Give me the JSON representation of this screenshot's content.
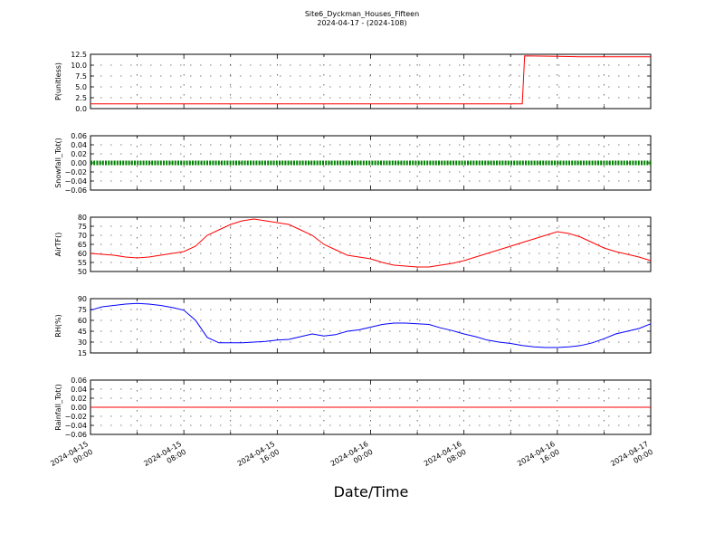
{
  "title": "Site6_Dyckman_Houses_Fifteen",
  "subtitle": "2024-04-17 - (2024-108)",
  "xlabel": "Date/Time",
  "x_ticks": [
    "2024-04-15\n00:00",
    "2024-04-15\n08:00",
    "2024-04-15\n16:00",
    "2024-04-16\n00:00",
    "2024-04-16\n08:00",
    "2024-04-16\n16:00",
    "2024-04-17\n00:00"
  ],
  "chart_data": [
    {
      "type": "line",
      "ylabel": "P(unitless)",
      "ylim": [
        0,
        13.5
      ],
      "yticks": [
        "0.0",
        "2.5",
        "5.0",
        "7.5",
        "10.0",
        "12.5"
      ],
      "grid": true,
      "series": [
        {
          "color": "#ff0000",
          "marker": "none",
          "points": [
            [
              0,
              1.2
            ],
            [
              37,
              1.2
            ],
            [
              37.2,
              13.1
            ],
            [
              40,
              13.0
            ],
            [
              42,
              12.9
            ],
            [
              48,
              12.9
            ]
          ]
        }
      ]
    },
    {
      "type": "line",
      "ylabel": "Snowfall_Tot()",
      "ylim": [
        -0.06,
        0.06
      ],
      "yticks": [
        "−0.06",
        "−0.04",
        "−0.02",
        "0.00",
        "0.02",
        "0.04",
        "0.06"
      ],
      "grid": true,
      "series": [
        {
          "color": "#008000",
          "marker": "dot",
          "points": [
            [
              0,
              0
            ],
            [
              48,
              0
            ]
          ]
        }
      ]
    },
    {
      "type": "line",
      "ylabel": "AirTF()",
      "ylim": [
        50,
        80
      ],
      "yticks": [
        "50",
        "55",
        "60",
        "65",
        "70",
        "75",
        "80"
      ],
      "grid": true,
      "series": [
        {
          "color": "#ff0000",
          "marker": "none",
          "points": [
            [
              0,
              60
            ],
            [
              1,
              59.5
            ],
            [
              2,
              59
            ],
            [
              3,
              58
            ],
            [
              4,
              57.5
            ],
            [
              5,
              58
            ],
            [
              6,
              59
            ],
            [
              7,
              60
            ],
            [
              8,
              61
            ],
            [
              9,
              64
            ],
            [
              10,
              70
            ],
            [
              11,
              73
            ],
            [
              12,
              76
            ],
            [
              13,
              78
            ],
            [
              14,
              79
            ],
            [
              15,
              78
            ],
            [
              16,
              77
            ],
            [
              17,
              76
            ],
            [
              18,
              73
            ],
            [
              19,
              70
            ],
            [
              20,
              65
            ],
            [
              21,
              62
            ],
            [
              22,
              59
            ],
            [
              23,
              58
            ],
            [
              24,
              57
            ],
            [
              25,
              55
            ],
            [
              26,
              53.5
            ],
            [
              27,
              53
            ],
            [
              28,
              52.5
            ],
            [
              29,
              52.5
            ],
            [
              30,
              53.5
            ],
            [
              31,
              54.5
            ],
            [
              32,
              56
            ],
            [
              33,
              58
            ],
            [
              34,
              60
            ],
            [
              35,
              62
            ],
            [
              36,
              64
            ],
            [
              37,
              66
            ],
            [
              38,
              68
            ],
            [
              39,
              70
            ],
            [
              40,
              72
            ],
            [
              41,
              71
            ],
            [
              42,
              69
            ],
            [
              43,
              66
            ],
            [
              44,
              63
            ],
            [
              45,
              61
            ],
            [
              46,
              59.5
            ],
            [
              47,
              58
            ],
            [
              48,
              56
            ]
          ]
        }
      ]
    },
    {
      "type": "line",
      "ylabel": "RH(%)",
      "ylim": [
        10,
        90
      ],
      "yticks": [
        "15",
        "30",
        "45",
        "60",
        "75",
        "90"
      ],
      "grid": true,
      "series": [
        {
          "color": "#0000ff",
          "marker": "none",
          "points": [
            [
              0,
              73
            ],
            [
              1,
              78
            ],
            [
              2,
              80
            ],
            [
              3,
              82
            ],
            [
              4,
              83
            ],
            [
              5,
              82
            ],
            [
              6,
              80
            ],
            [
              7,
              77
            ],
            [
              8,
              73
            ],
            [
              9,
              58
            ],
            [
              10,
              33
            ],
            [
              11,
              25
            ],
            [
              12,
              25
            ],
            [
              13,
              25
            ],
            [
              14,
              26
            ],
            [
              15,
              27
            ],
            [
              16,
              29
            ],
            [
              17,
              30
            ],
            [
              18,
              34
            ],
            [
              19,
              38
            ],
            [
              20,
              35
            ],
            [
              21,
              37
            ],
            [
              22,
              42
            ],
            [
              23,
              44
            ],
            [
              24,
              48
            ],
            [
              25,
              52
            ],
            [
              26,
              54
            ],
            [
              27,
              54
            ],
            [
              28,
              53
            ],
            [
              29,
              52
            ],
            [
              30,
              47
            ],
            [
              31,
              43
            ],
            [
              32,
              38
            ],
            [
              33,
              34
            ],
            [
              34,
              29
            ],
            [
              35,
              26
            ],
            [
              36,
              24
            ],
            [
              37,
              21
            ],
            [
              38,
              19
            ],
            [
              39,
              18
            ],
            [
              40,
              18
            ],
            [
              41,
              19
            ],
            [
              42,
              21
            ],
            [
              43,
              25
            ],
            [
              44,
              31
            ],
            [
              45,
              38
            ],
            [
              46,
              42
            ],
            [
              47,
              46
            ],
            [
              48,
              53
            ]
          ]
        }
      ]
    },
    {
      "type": "line",
      "ylabel": "Rainfall_Tot()",
      "ylim": [
        -0.06,
        0.06
      ],
      "yticks": [
        "−0.06",
        "−0.04",
        "−0.02",
        "0.00",
        "0.02",
        "0.04",
        "0.06"
      ],
      "grid": true,
      "series": [
        {
          "color": "#ff0000",
          "marker": "none",
          "points": [
            [
              0,
              0
            ],
            [
              48,
              0
            ]
          ]
        }
      ]
    }
  ]
}
